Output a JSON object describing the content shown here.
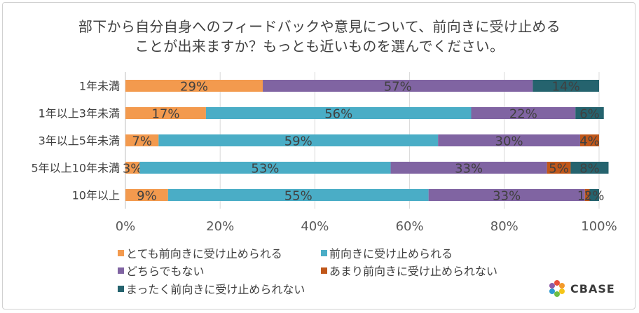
{
  "chart_data": {
    "type": "bar",
    "orientation": "horizontal",
    "stacked": true,
    "title": "部下から自分自身へのフィードバックや意見について、前向きに受け止める",
    "subtitle": "ことが出来ますか？もっとも近いものを選んでください。",
    "categories": [
      "1年未満",
      "1年以上3年未満",
      "3年以上5年未満",
      "5年以上10年未満",
      "10年以上"
    ],
    "series": [
      {
        "name": "とても前向きに受け止められる",
        "color": "#F39A4E",
        "values": [
          29,
          17,
          7,
          3,
          9
        ],
        "labels": [
          "29%",
          "17%",
          "7%",
          "3%",
          "9%"
        ]
      },
      {
        "name": "前向きに受け止められる",
        "color": "#4AADC6",
        "values": [
          0,
          56,
          59,
          53,
          55
        ],
        "labels": [
          "",
          "56%",
          "59%",
          "53%",
          "55%"
        ]
      },
      {
        "name": "どちらでもない",
        "color": "#8064A2",
        "values": [
          57,
          22,
          30,
          33,
          33
        ],
        "labels": [
          "57%",
          "22%",
          "30%",
          "33%",
          "33%"
        ]
      },
      {
        "name": "あまり前向きに受け止められない",
        "color": "#C0571A",
        "values": [
          0,
          0,
          4,
          5,
          1
        ],
        "labels": [
          "",
          "",
          "4%",
          "5%",
          "1%"
        ]
      },
      {
        "name": "まったく前向きに受け止められない",
        "color": "#25636E",
        "values": [
          14,
          6,
          0,
          8,
          2
        ],
        "labels": [
          "14%",
          "6%",
          "",
          "8%",
          "2%"
        ]
      }
    ],
    "xlim": [
      0,
      100
    ],
    "xticks": [
      "0%",
      "20%",
      "40%",
      "60%",
      "80%",
      "100%"
    ],
    "grid": true,
    "legend_position": "bottom"
  },
  "brand": {
    "name": "CBASE"
  }
}
